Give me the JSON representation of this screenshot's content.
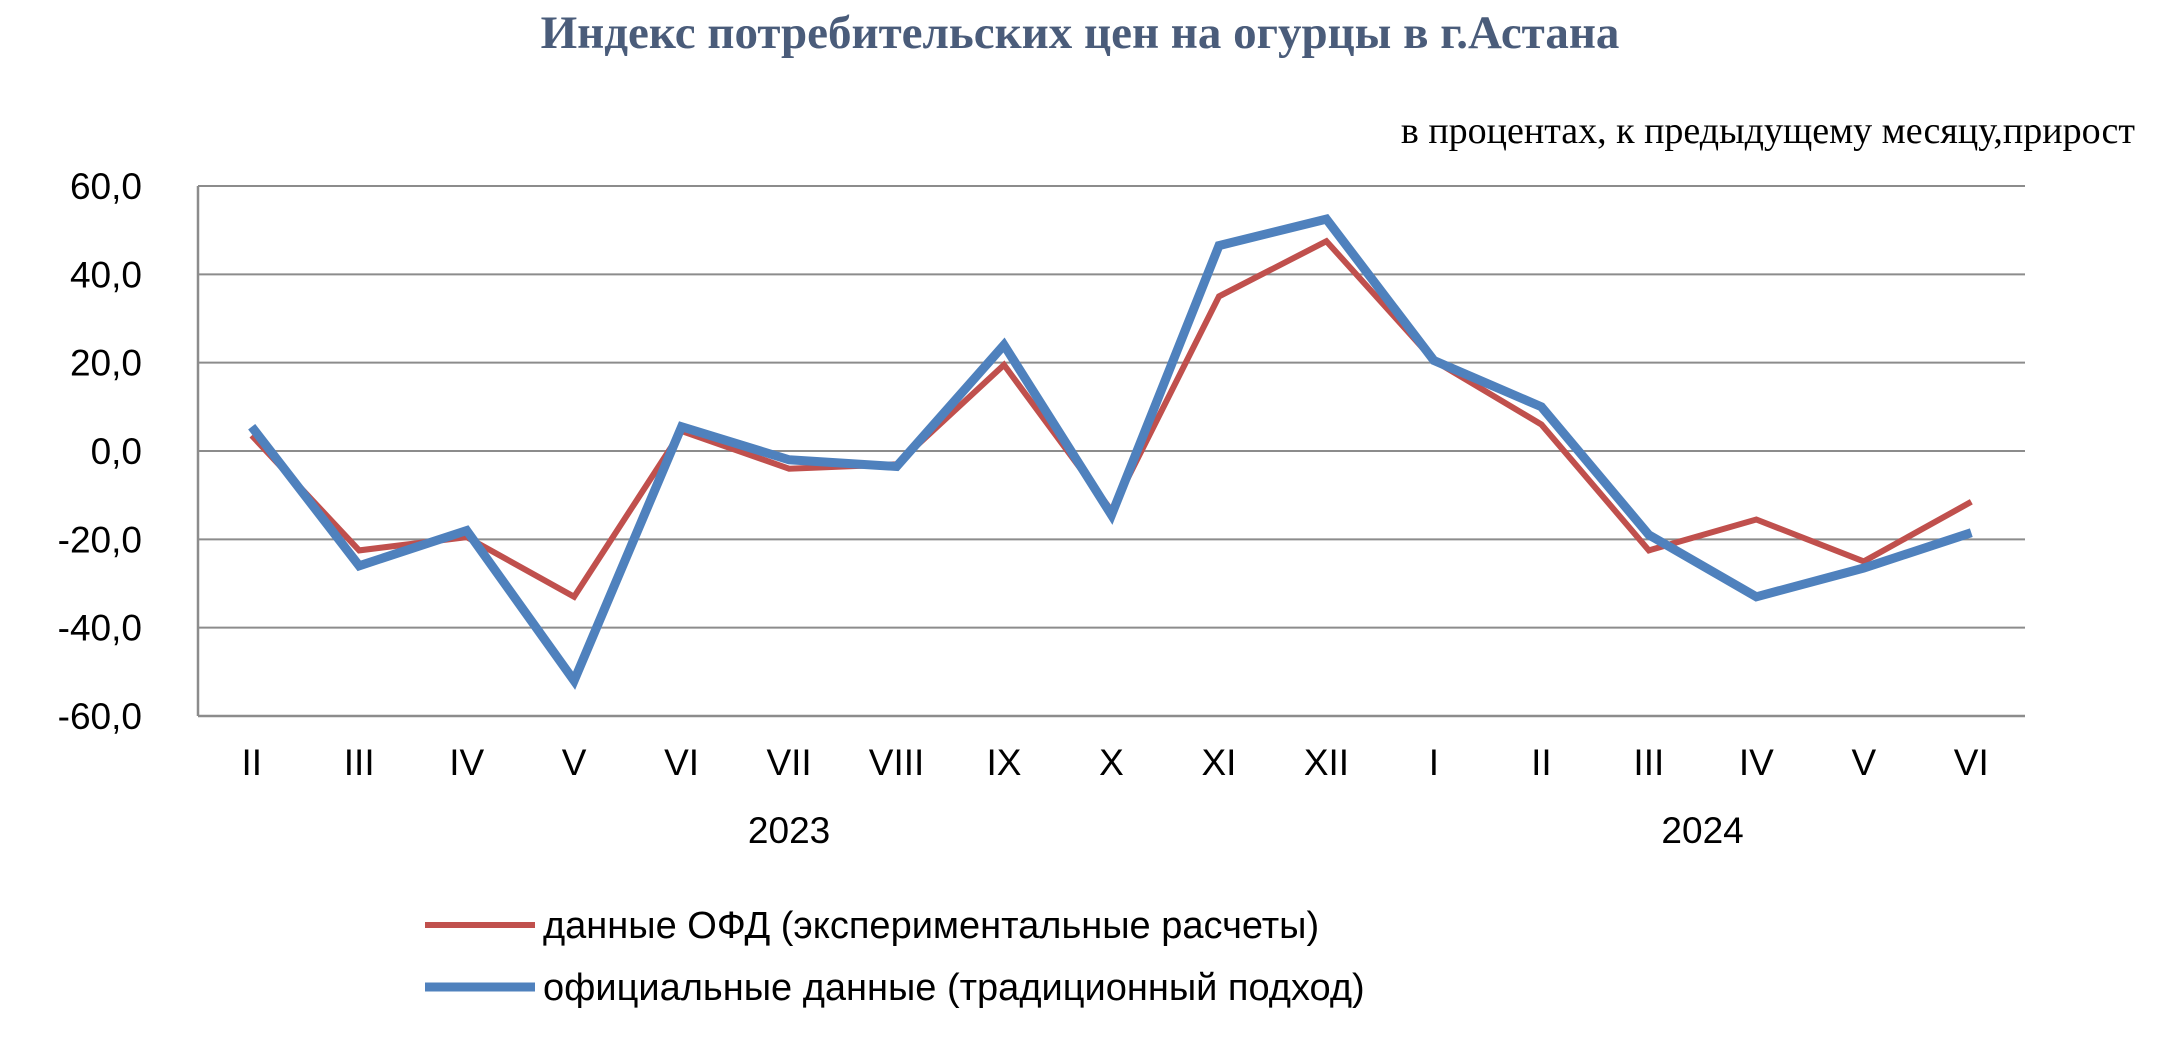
{
  "chart_data": {
    "type": "line",
    "title": "Индекс потребительских цен на огурцы в г.Астана",
    "subtitle": "в процентах, к предыдущему месяцу,прирост",
    "categories": [
      "II",
      "III",
      "IV",
      "V",
      "VI",
      "VII",
      "VIII",
      "IX",
      "X",
      "XI",
      "XII",
      "I",
      "II",
      "III",
      "IV",
      "V",
      "VI"
    ],
    "year_labels": [
      {
        "label": "2023",
        "center_category": 5
      },
      {
        "label": "2024",
        "center_category": 13.5
      }
    ],
    "ylim": [
      -60,
      60
    ],
    "yticks": [
      60,
      40,
      20,
      0,
      -20,
      -40,
      -60
    ],
    "ytick_labels": [
      "60,0",
      "40,0",
      "20,0",
      "0,0",
      "-20,0",
      "-40,0",
      "-60,0"
    ],
    "grid": true,
    "legend_position": "bottom",
    "series": [
      {
        "name": "данные ОФД (экспериментальные расчеты)",
        "color": "#c0504d",
        "values": [
          3.5,
          -22.5,
          -19.5,
          -33.0,
          4.5,
          -4.0,
          -3.0,
          19.5,
          -13.5,
          35.0,
          47.5,
          20.5,
          6.0,
          -22.5,
          -15.5,
          -25.0,
          -11.5
        ]
      },
      {
        "name": "официальные данные (традиционный подход)",
        "color": "#4f81bd",
        "values": [
          5.5,
          -26.0,
          -18.0,
          -52.0,
          5.5,
          -2.0,
          -3.5,
          24.0,
          -14.5,
          46.5,
          52.5,
          20.5,
          10.0,
          -19.0,
          -33.0,
          -26.5,
          -18.5
        ]
      }
    ]
  }
}
